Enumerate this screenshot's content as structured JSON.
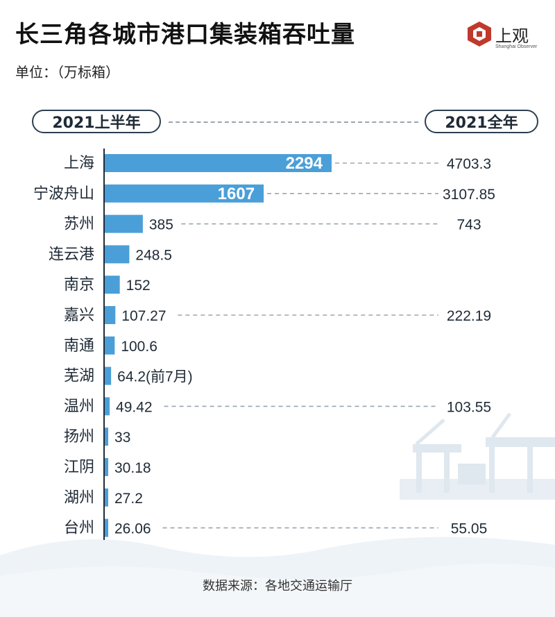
{
  "title": "长三角各城市港口集装箱吞吐量",
  "unit": "单位：（万标箱）",
  "logo": {
    "name": "上观",
    "sub": "Shanghai Observer"
  },
  "legend": {
    "left": "2021上半年",
    "right": "2021全年"
  },
  "source": "数据来源：各地交通运输厅",
  "colors": {
    "bar": "#4a9fd8",
    "axis": "#1f2a36",
    "dash": "#9aa5ae",
    "text": "#1f2a36"
  },
  "chart_data": {
    "type": "bar",
    "orientation": "horizontal",
    "categories": [
      "上海",
      "宁波舟山",
      "苏州",
      "连云港",
      "南京",
      "嘉兴",
      "南通",
      "芜湖",
      "温州",
      "扬州",
      "江阴",
      "湖州",
      "台州"
    ],
    "series": [
      {
        "name": "2021上半年",
        "values": [
          2294,
          1607,
          385,
          248.5,
          152,
          107.27,
          100.6,
          64.2,
          49.42,
          33,
          30.18,
          27.2,
          26.06
        ],
        "labels": [
          "2294",
          "1607",
          "385",
          "248.5",
          "152",
          "107.27",
          "100.6",
          "64.2(前7月)",
          "49.42",
          "33",
          "30.18",
          "27.2",
          "26.06"
        ]
      },
      {
        "name": "2021全年",
        "values": [
          4703.3,
          3107.85,
          743,
          null,
          null,
          222.19,
          null,
          null,
          103.55,
          null,
          null,
          null,
          55.05
        ],
        "labels": [
          "4703.3",
          "3107.85",
          "743",
          "",
          "",
          "222.19",
          "",
          "",
          "103.55",
          "",
          "",
          "",
          "55.05"
        ]
      }
    ]
  }
}
